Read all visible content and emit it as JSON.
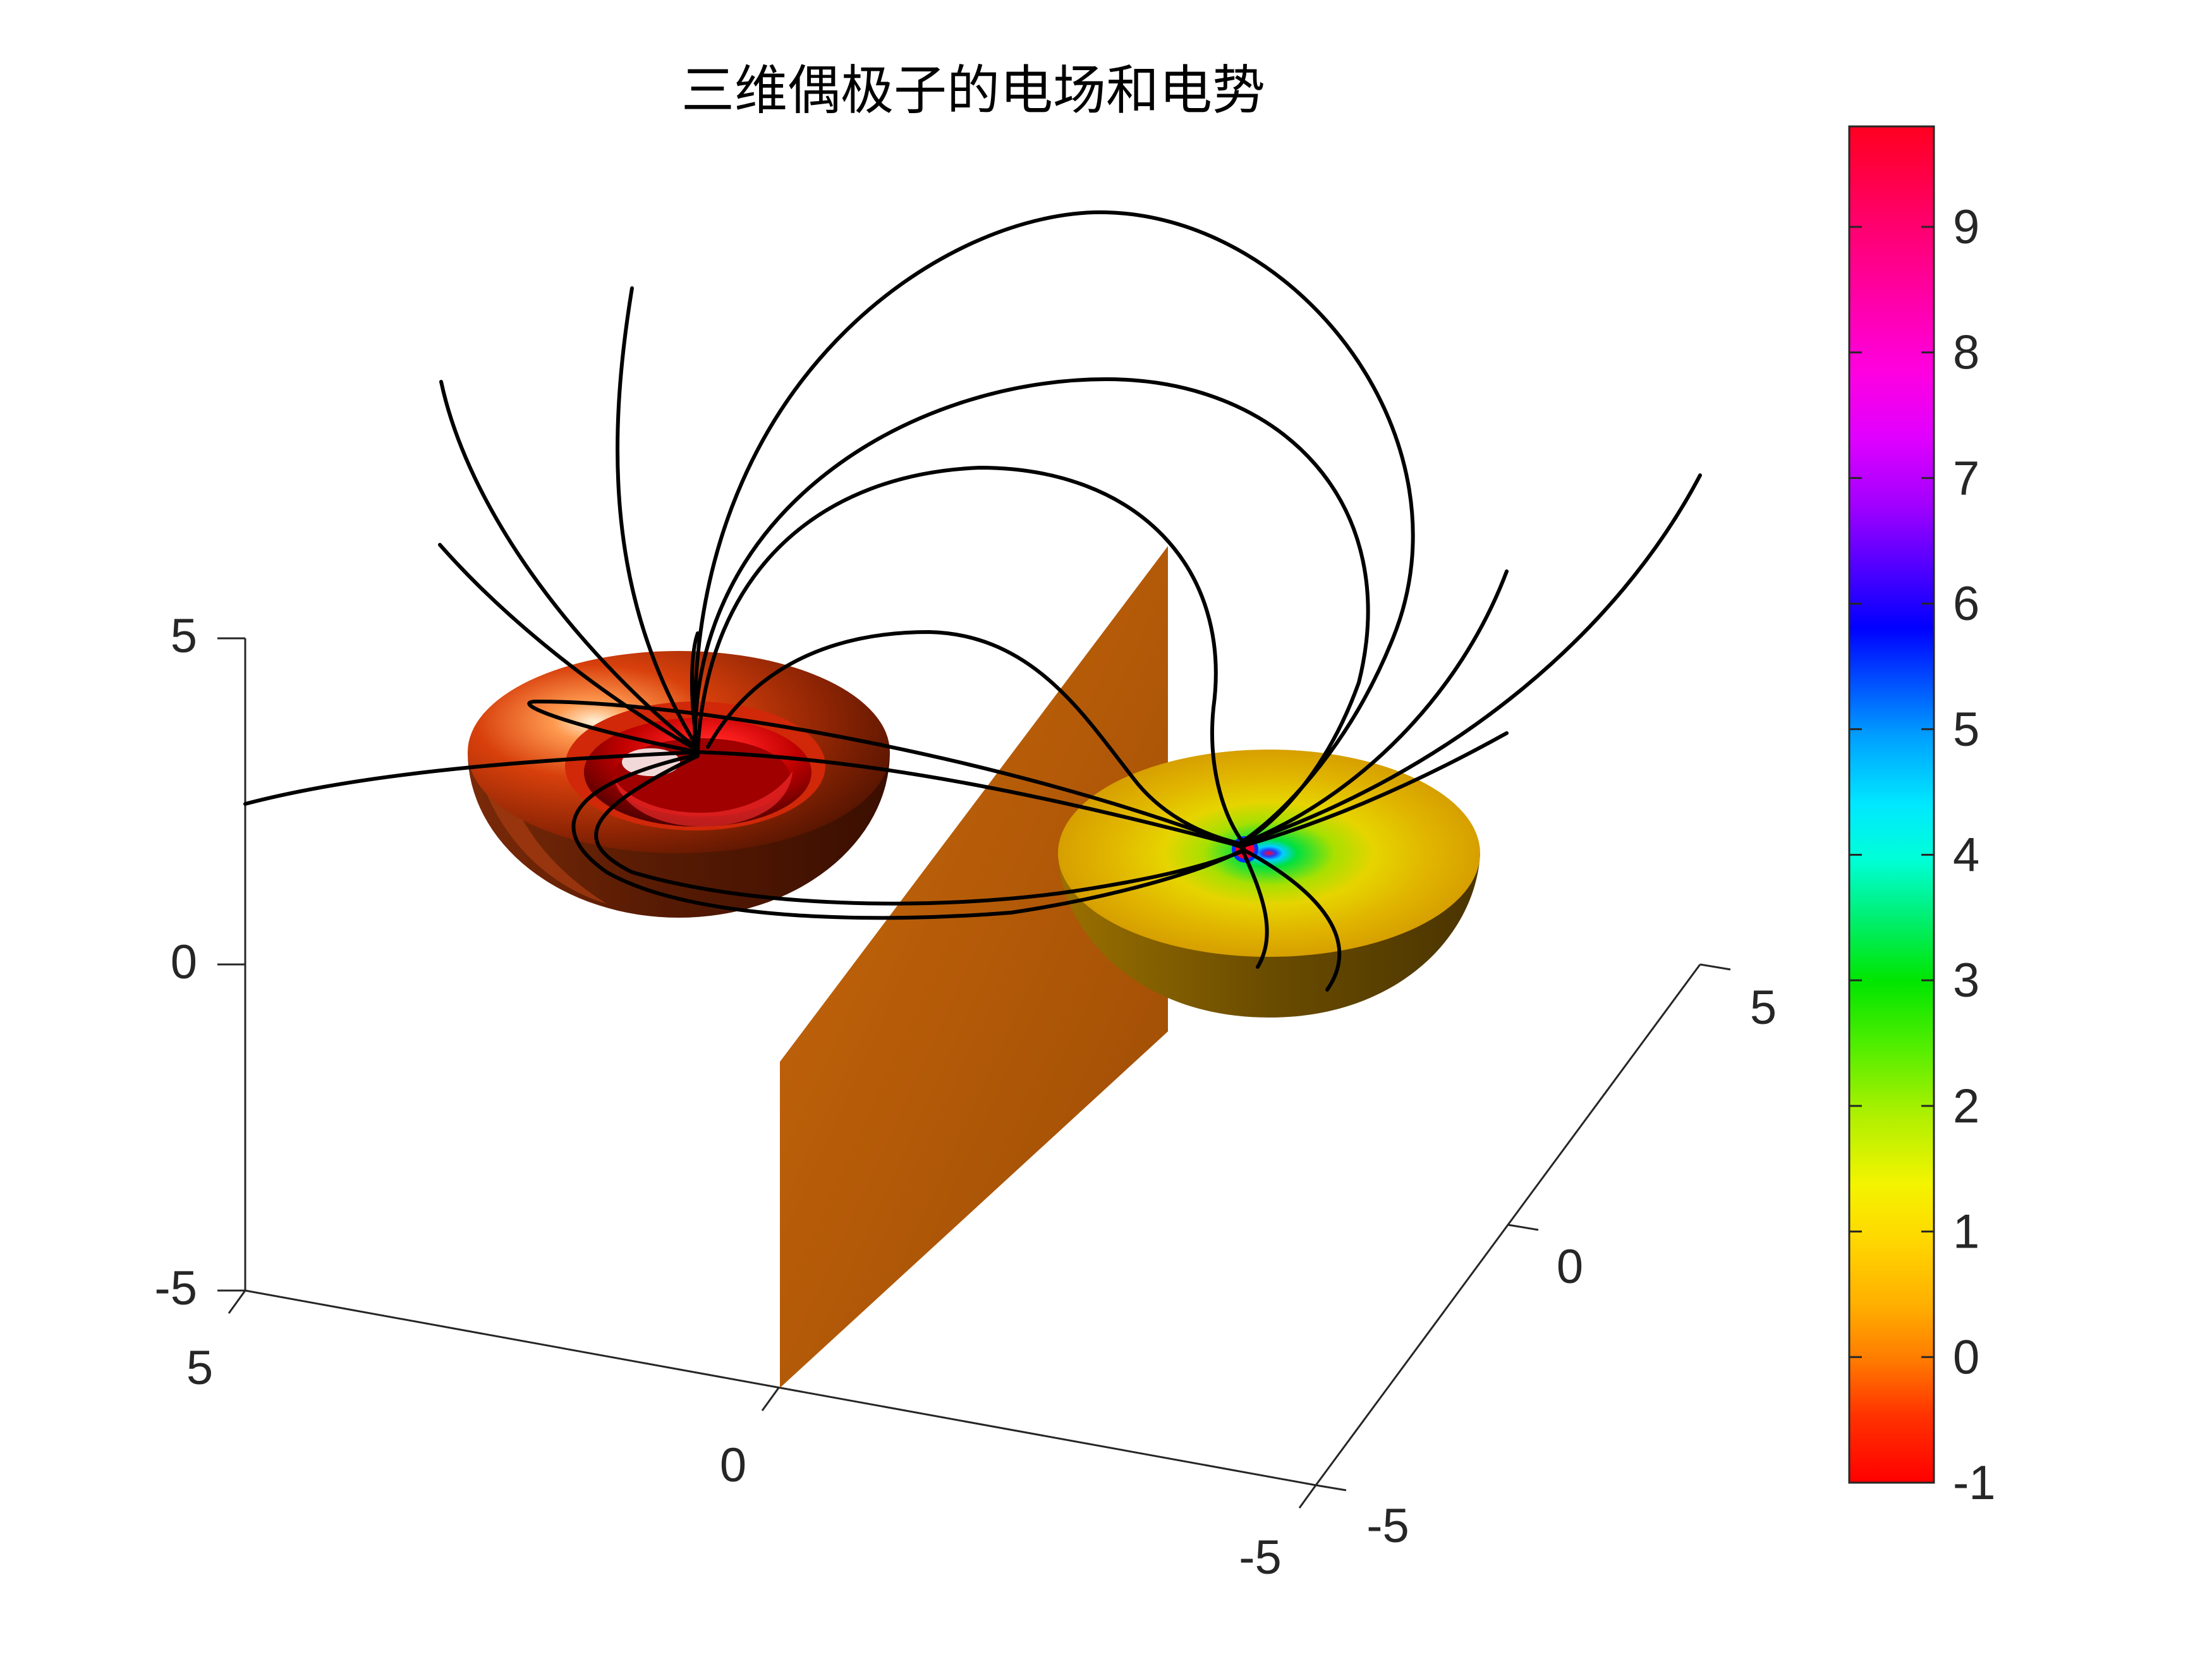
{
  "chart_data": {
    "type": "surface3d",
    "title": "三维偶极子的电场和电势",
    "axes": {
      "x": {
        "ticks": [
          "5",
          "0",
          "-5"
        ],
        "range": [
          -5,
          5
        ]
      },
      "y": {
        "ticks": [
          "-5",
          "0",
          "5"
        ],
        "range": [
          -5,
          5
        ]
      },
      "z": {
        "ticks": [
          "-5",
          "0",
          "5"
        ],
        "range": [
          -5,
          5
        ]
      }
    },
    "colorbar": {
      "ticks": [
        "-1",
        "0",
        "1",
        "2",
        "3",
        "4",
        "5",
        "6",
        "7",
        "8",
        "9"
      ],
      "range": [
        -1,
        9.8
      ],
      "colormap": "hsv-reversed",
      "placement": "right"
    },
    "elements": [
      {
        "kind": "hemisphere",
        "name": "positive-charge",
        "color": "#c23a10"
      },
      {
        "kind": "hemisphere",
        "name": "negative-charge",
        "color": "#d8a000"
      },
      {
        "kind": "plane",
        "name": "potential-plane",
        "color": "#b8600a"
      },
      {
        "kind": "streamlines",
        "name": "electric-field-lines",
        "color": "#000000"
      }
    ],
    "grid": false
  }
}
